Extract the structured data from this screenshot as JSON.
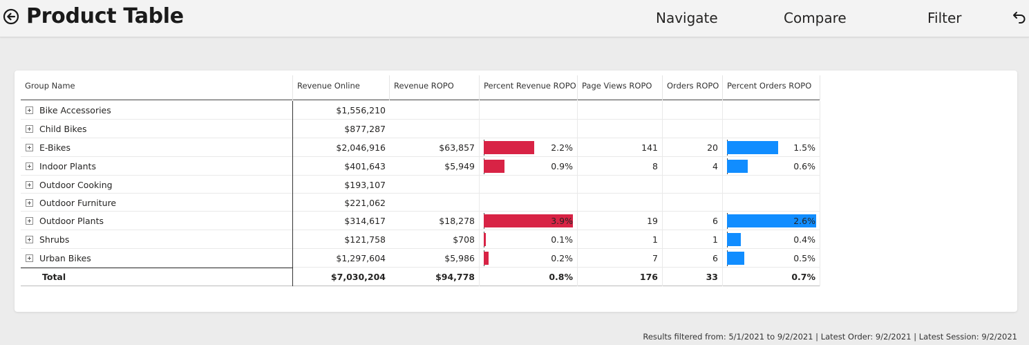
{
  "header": {
    "title": "Product Table",
    "nav": [
      "Navigate",
      "Compare",
      "Filter"
    ]
  },
  "table": {
    "columns": [
      "Group Name",
      "Revenue Online",
      "Revenue ROPO",
      "Percent Revenue ROPO",
      "Page Views ROPO",
      "Orders ROPO",
      "Percent Orders ROPO"
    ],
    "rows": [
      {
        "name": "Bike Accessories",
        "revenue_online": "$1,556,210",
        "revenue_ropo": "",
        "pct_rev": "",
        "pct_rev_value": null,
        "page_views": "",
        "orders": "",
        "pct_orders": "",
        "pct_orders_value": null
      },
      {
        "name": "Child Bikes",
        "revenue_online": "$877,287",
        "revenue_ropo": "",
        "pct_rev": "",
        "pct_rev_value": null,
        "page_views": "",
        "orders": "",
        "pct_orders": "",
        "pct_orders_value": null
      },
      {
        "name": "E-Bikes",
        "revenue_online": "$2,046,916",
        "revenue_ropo": "$63,857",
        "pct_rev": "2.2%",
        "pct_rev_value": 2.2,
        "page_views": "141",
        "orders": "20",
        "pct_orders": "1.5%",
        "pct_orders_value": 1.5
      },
      {
        "name": "Indoor Plants",
        "revenue_online": "$401,643",
        "revenue_ropo": "$5,949",
        "pct_rev": "0.9%",
        "pct_rev_value": 0.9,
        "page_views": "8",
        "orders": "4",
        "pct_orders": "0.6%",
        "pct_orders_value": 0.6
      },
      {
        "name": "Outdoor Cooking",
        "revenue_online": "$193,107",
        "revenue_ropo": "",
        "pct_rev": "",
        "pct_rev_value": null,
        "page_views": "",
        "orders": "",
        "pct_orders": "",
        "pct_orders_value": null
      },
      {
        "name": "Outdoor Furniture",
        "revenue_online": "$221,062",
        "revenue_ropo": "",
        "pct_rev": "",
        "pct_rev_value": null,
        "page_views": "",
        "orders": "",
        "pct_orders": "",
        "pct_orders_value": null
      },
      {
        "name": "Outdoor Plants",
        "revenue_online": "$314,617",
        "revenue_ropo": "$18,278",
        "pct_rev": "3.9%",
        "pct_rev_value": 3.9,
        "page_views": "19",
        "orders": "6",
        "pct_orders": "2.6%",
        "pct_orders_value": 2.6
      },
      {
        "name": "Shrubs",
        "revenue_online": "$121,758",
        "revenue_ropo": "$708",
        "pct_rev": "0.1%",
        "pct_rev_value": 0.1,
        "page_views": "1",
        "orders": "1",
        "pct_orders": "0.4%",
        "pct_orders_value": 0.4
      },
      {
        "name": "Urban Bikes",
        "revenue_online": "$1,297,604",
        "revenue_ropo": "$5,986",
        "pct_rev": "0.2%",
        "pct_rev_value": 0.2,
        "page_views": "7",
        "orders": "6",
        "pct_orders": "0.5%",
        "pct_orders_value": 0.5
      }
    ],
    "total": {
      "name": "Total",
      "revenue_online": "$7,030,204",
      "revenue_ropo": "$94,778",
      "pct_rev": "0.8%",
      "page_views": "176",
      "orders": "33",
      "pct_orders": "0.7%"
    },
    "pct_rev_max": 3.9,
    "pct_orders_max": 2.6
  },
  "footer": {
    "text": "Results filtered from: 5/1/2021 to 9/2/2021  |  Latest Order: 9/2/2021  |  Latest Session: 9/2/2021"
  },
  "colors": {
    "pct_rev_bar": "#d82345",
    "pct_orders_bar": "#118dff"
  },
  "icons": {
    "back": "back-arrow-circle-icon",
    "undo": "undo-icon",
    "expand": "expand-plus-icon"
  }
}
